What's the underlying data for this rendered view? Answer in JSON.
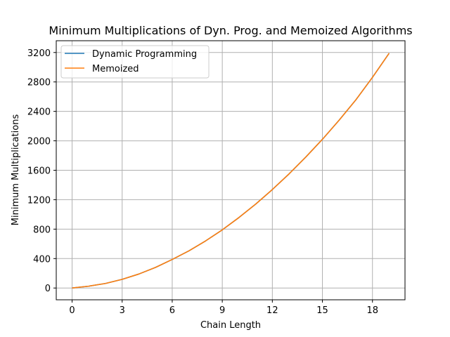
{
  "chart_data": {
    "type": "line",
    "title": "Minimum Multiplications of Dyn. Prog. and Memoized Algorithms",
    "xlabel": "Chain Length",
    "ylabel": "Minimum Multiplications",
    "xlim": [
      -0.95,
      19.95
    ],
    "ylim": [
      -160,
      3360
    ],
    "xticks": [
      0,
      3,
      6,
      9,
      12,
      15,
      18
    ],
    "yticks": [
      0,
      400,
      800,
      1200,
      1600,
      2000,
      2400,
      2800,
      3200
    ],
    "grid": true,
    "legend_placement": "top-left",
    "x": [
      0,
      1,
      2,
      3,
      4,
      5,
      6,
      7,
      8,
      9,
      10,
      11,
      12,
      13,
      14,
      15,
      16,
      17,
      18,
      19
    ],
    "series": [
      {
        "name": "Dynamic Programming",
        "color": "#1f77b4",
        "values": [
          0,
          25,
          62,
          118,
          190,
          280,
          388,
          505,
          640,
          790,
          958,
          1140,
          1338,
          1550,
          1778,
          2020,
          2280,
          2555,
          2862,
          3190
        ]
      },
      {
        "name": "Memoized",
        "color": "#ff7f0e",
        "values": [
          0,
          25,
          62,
          118,
          190,
          280,
          388,
          505,
          640,
          790,
          958,
          1140,
          1338,
          1550,
          1778,
          2020,
          2280,
          2555,
          2862,
          3190
        ]
      }
    ]
  }
}
